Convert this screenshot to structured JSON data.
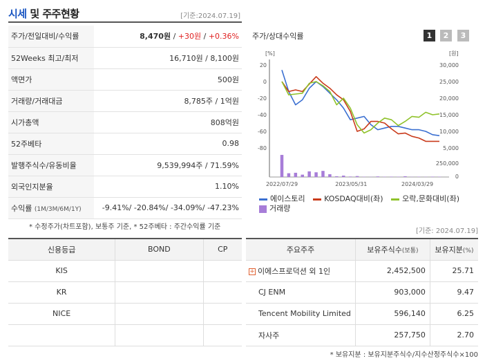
{
  "header": {
    "title_a": "시세",
    "title_b": " 및 주주현황",
    "date": "[기준:2024.07.19]"
  },
  "info": {
    "price_label": "주가/전일대비/수익률",
    "price_value": "8,470원",
    "price_change": "+30원",
    "price_sep": " / ",
    "price_pct": "+0.36%",
    "rows": [
      {
        "label": "52Weeks 최고/최저",
        "value": "16,710원 / 8,100원"
      },
      {
        "label": "액면가",
        "value": "500원"
      },
      {
        "label": "거래량/거래대금",
        "value": "8,785주 / 1억원"
      },
      {
        "label": "시가총액",
        "value": "808억원"
      },
      {
        "label": "52주베타",
        "value": "0.98"
      },
      {
        "label": "발행주식수/유동비율",
        "value": "9,539,994주 / 71.59%"
      },
      {
        "label": "외국인지분율",
        "value": "1.10%"
      }
    ],
    "return_label": "수익률",
    "return_sub": "(1M/3M/6M/1Y)",
    "returns": "-9.41%/ -20.84%/ -34.09%/ -47.23%",
    "footnote": "* 수정주가(차트포함), 보통주 기준, * 52주베타 : 주간수익률 기준"
  },
  "chart_panel": {
    "title": "주가/상대수익률",
    "buttons": [
      "1",
      "2",
      "3"
    ],
    "legend": {
      "s1": "에이스토리",
      "s2": "KOSDAQ대비(좌)",
      "s3": "오락,문화대비(좌)",
      "s4": "거래량"
    }
  },
  "chart_data": {
    "type": "line",
    "x_tick_labels": [
      "2022/07/29",
      "2023/05/31",
      "2024/03/29"
    ],
    "left_axis_unit": "[%]",
    "right_axis_unit": "[원]",
    "left_ylim": [
      -80,
      20
    ],
    "left_ticks": [
      20,
      0,
      -20,
      -40,
      -60,
      -80
    ],
    "right_ylim": [
      5000,
      30000
    ],
    "right_ticks": [
      "30,000",
      "25,000",
      "20,000",
      "15,000",
      "10,000",
      "5,000"
    ],
    "volume_ticks": [
      "250,000",
      "0"
    ],
    "volume_max": 250000,
    "colors": {
      "price": "#3a6fd1",
      "kosdaq": "#c93a1a",
      "ent": "#8fc22a",
      "volume": "#a77dd8"
    },
    "series": [
      {
        "name": "에이스토리",
        "axis": "right",
        "values": [
          28500,
          22000,
          18000,
          19500,
          23000,
          25000,
          23500,
          21500,
          19500,
          17000,
          13500,
          14000,
          14500,
          12000,
          10500,
          11000,
          11500,
          11500,
          11000,
          10500,
          10500,
          10000,
          9000,
          8700
        ]
      },
      {
        "name": "KOSDAQ대비(좌)",
        "axis": "left",
        "values": [
          0,
          -12,
          -10,
          -12,
          -3,
          6,
          -2,
          -8,
          -16,
          -22,
          -36,
          -60,
          -57,
          -48,
          -48,
          -50,
          -57,
          -63,
          -62,
          -66,
          -68,
          -72,
          -72,
          -72
        ]
      },
      {
        "name": "오락,문화대비(좌)",
        "axis": "left",
        "values": [
          0,
          -16,
          -15,
          -14,
          -2,
          0,
          -5,
          -12,
          -28,
          -20,
          -32,
          -52,
          -62,
          -58,
          -50,
          -44,
          -46,
          -53,
          -48,
          -42,
          -43,
          -37,
          -40,
          -39
        ]
      }
    ],
    "volume": [
      235000,
      40000,
      45000,
      25000,
      60000,
      50000,
      65000,
      30000,
      8000,
      15000,
      5000,
      10000,
      3000,
      2000,
      6000,
      3000,
      4000,
      3000,
      8000,
      2000,
      3000,
      2000,
      4000,
      3000
    ]
  },
  "credit": {
    "headers": [
      "신용등급",
      "BOND",
      "CP"
    ],
    "rows": [
      {
        "name": "KIS",
        "bond": "",
        "cp": ""
      },
      {
        "name": "KR",
        "bond": "",
        "cp": ""
      },
      {
        "name": "NICE",
        "bond": "",
        "cp": ""
      },
      {
        "name": "",
        "bond": "",
        "cp": ""
      }
    ]
  },
  "holders": {
    "date": "[기준: 2024.07.19]",
    "headers": [
      "주요주주",
      "보유주식수",
      "(보통)",
      "보유지분",
      "(%)"
    ],
    "rows": [
      {
        "name": "이에스프로덕션 외 1인",
        "shares": "2,452,500",
        "pct": "25.71"
      },
      {
        "name": "CJ ENM",
        "shares": "903,000",
        "pct": "9.47"
      },
      {
        "name": "Tencent Mobility Limited",
        "shares": "596,140",
        "pct": "6.25"
      },
      {
        "name": "자사주",
        "shares": "257,750",
        "pct": "2.70"
      }
    ],
    "footnote": "* 보유지분 : 보유지분주식수/지수산정주식수×100"
  }
}
